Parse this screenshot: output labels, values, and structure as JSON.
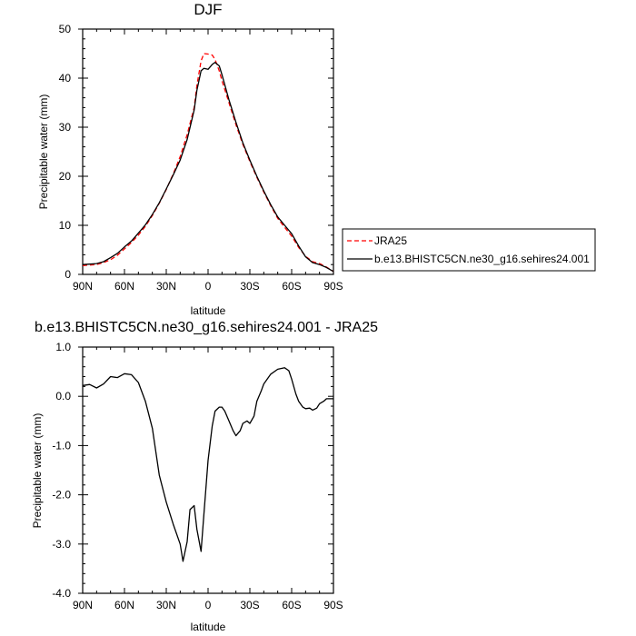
{
  "figure": {
    "legend": {
      "entries": [
        {
          "label": "JRA25",
          "color": "#ff0000",
          "dash": "dashed"
        },
        {
          "label": "b.e13.BHISTC5CN.ne30_g16.sehires24.001",
          "color": "#000000",
          "dash": "solid"
        }
      ]
    }
  },
  "chart_data": [
    {
      "type": "line",
      "title": "DJF",
      "xlabel": "latitude",
      "ylabel": "Precipitable water (mm)",
      "x_ticks": [
        {
          "value": 90,
          "label": "90N"
        },
        {
          "value": 60,
          "label": "60N"
        },
        {
          "value": 30,
          "label": "30N"
        },
        {
          "value": 0,
          "label": "0"
        },
        {
          "value": -30,
          "label": "30S"
        },
        {
          "value": -60,
          "label": "60S"
        },
        {
          "value": -90,
          "label": "90S"
        }
      ],
      "y_ticks": [
        {
          "value": 0,
          "label": "0"
        },
        {
          "value": 10,
          "label": "10"
        },
        {
          "value": 20,
          "label": "20"
        },
        {
          "value": 30,
          "label": "30"
        },
        {
          "value": 40,
          "label": "40"
        },
        {
          "value": 50,
          "label": "50"
        }
      ],
      "xlim": [
        90,
        -90
      ],
      "ylim": [
        0,
        50
      ],
      "grid": false,
      "legend_position": "right-outside",
      "series": [
        {
          "name": "JRA25",
          "color": "#ff0000",
          "dash": "dashed",
          "x": [
            90,
            85,
            80,
            75,
            70,
            65,
            60,
            55,
            50,
            45,
            40,
            35,
            30,
            25,
            20,
            15,
            10,
            8,
            5,
            3,
            0,
            -3,
            -5,
            -8,
            -10,
            -15,
            -20,
            -25,
            -30,
            -35,
            -40,
            -45,
            -50,
            -55,
            -60,
            -65,
            -70,
            -75,
            -80,
            -85,
            -90
          ],
          "y": [
            1.8,
            1.9,
            2.0,
            2.4,
            3.0,
            3.9,
            5.2,
            6.5,
            8.0,
            9.8,
            12.0,
            14.5,
            17.3,
            20.5,
            24.0,
            28.5,
            34.0,
            38.5,
            43.5,
            45.0,
            44.9,
            44.7,
            43.8,
            41.5,
            39.5,
            35.0,
            30.5,
            26.5,
            23.0,
            19.8,
            16.8,
            14.0,
            11.4,
            9.6,
            7.8,
            5.5,
            3.7,
            2.6,
            2.2,
            1.5,
            0.6
          ]
        },
        {
          "name": "b.e13.BHISTC5CN.ne30_g16.sehires24.001",
          "color": "#000000",
          "dash": "solid",
          "x": [
            90,
            85,
            80,
            75,
            70,
            65,
            60,
            55,
            50,
            45,
            40,
            35,
            30,
            25,
            20,
            15,
            10,
            8,
            5,
            3,
            0,
            -3,
            -5,
            -8,
            -10,
            -15,
            -20,
            -25,
            -30,
            -35,
            -40,
            -45,
            -50,
            -55,
            -60,
            -65,
            -70,
            -75,
            -80,
            -85,
            -90
          ],
          "y": [
            2.0,
            2.1,
            2.2,
            2.6,
            3.4,
            4.3,
            5.6,
            6.8,
            8.4,
            10.1,
            12.2,
            14.6,
            17.4,
            20.3,
            23.3,
            27.5,
            33.5,
            37.5,
            41.5,
            42.0,
            41.8,
            42.8,
            43.2,
            42.5,
            40.7,
            35.6,
            31.0,
            26.8,
            23.3,
            20.0,
            17.0,
            14.2,
            11.7,
            10.0,
            8.3,
            5.8,
            3.6,
            2.4,
            2.0,
            1.4,
            0.6
          ]
        }
      ]
    },
    {
      "type": "line",
      "title": "b.e13.BHISTC5CN.ne30_g16.sehires24.001 - JRA25",
      "xlabel": "latitude",
      "ylabel": "Precipitable water (mm)",
      "x_ticks": [
        {
          "value": 90,
          "label": "90N"
        },
        {
          "value": 60,
          "label": "60N"
        },
        {
          "value": 30,
          "label": "30N"
        },
        {
          "value": 0,
          "label": "0"
        },
        {
          "value": -30,
          "label": "30S"
        },
        {
          "value": -60,
          "label": "60S"
        },
        {
          "value": -90,
          "label": "90S"
        }
      ],
      "y_ticks": [
        {
          "value": 1.0,
          "label": "1.0"
        },
        {
          "value": 0.0,
          "label": "0.0"
        },
        {
          "value": -1.0,
          "label": "-1.0"
        },
        {
          "value": -2.0,
          "label": "-2.0"
        },
        {
          "value": -3.0,
          "label": "-3.0"
        },
        {
          "value": -4.0,
          "label": "-4.0"
        }
      ],
      "xlim": [
        90,
        -90
      ],
      "ylim": [
        -4.0,
        1.0
      ],
      "grid": false,
      "series": [
        {
          "color": "#000000",
          "dash": "solid",
          "x": [
            90,
            85,
            80,
            75,
            70,
            65,
            60,
            55,
            50,
            45,
            40,
            35,
            30,
            25,
            20,
            18,
            15,
            13,
            10,
            8,
            5,
            3,
            0,
            -3,
            -5,
            -8,
            -10,
            -12,
            -15,
            -18,
            -20,
            -23,
            -25,
            -28,
            -30,
            -33,
            -35,
            -38,
            -40,
            -45,
            -50,
            -55,
            -58,
            -60,
            -63,
            -65,
            -68,
            -70,
            -73,
            -75,
            -78,
            -80,
            -83,
            -85,
            -88,
            -90
          ],
          "y": [
            0.22,
            0.24,
            0.17,
            0.25,
            0.4,
            0.38,
            0.46,
            0.44,
            0.28,
            -0.1,
            -0.65,
            -1.6,
            -2.15,
            -2.6,
            -3.0,
            -3.35,
            -2.95,
            -2.3,
            -2.22,
            -2.7,
            -3.15,
            -2.4,
            -1.3,
            -0.6,
            -0.3,
            -0.22,
            -0.22,
            -0.3,
            -0.5,
            -0.7,
            -0.8,
            -0.7,
            -0.55,
            -0.5,
            -0.55,
            -0.4,
            -0.1,
            0.1,
            0.25,
            0.45,
            0.55,
            0.58,
            0.52,
            0.35,
            0.05,
            -0.1,
            -0.22,
            -0.25,
            -0.24,
            -0.28,
            -0.24,
            -0.15,
            -0.1,
            -0.05,
            -0.05,
            -0.05
          ]
        }
      ]
    }
  ]
}
